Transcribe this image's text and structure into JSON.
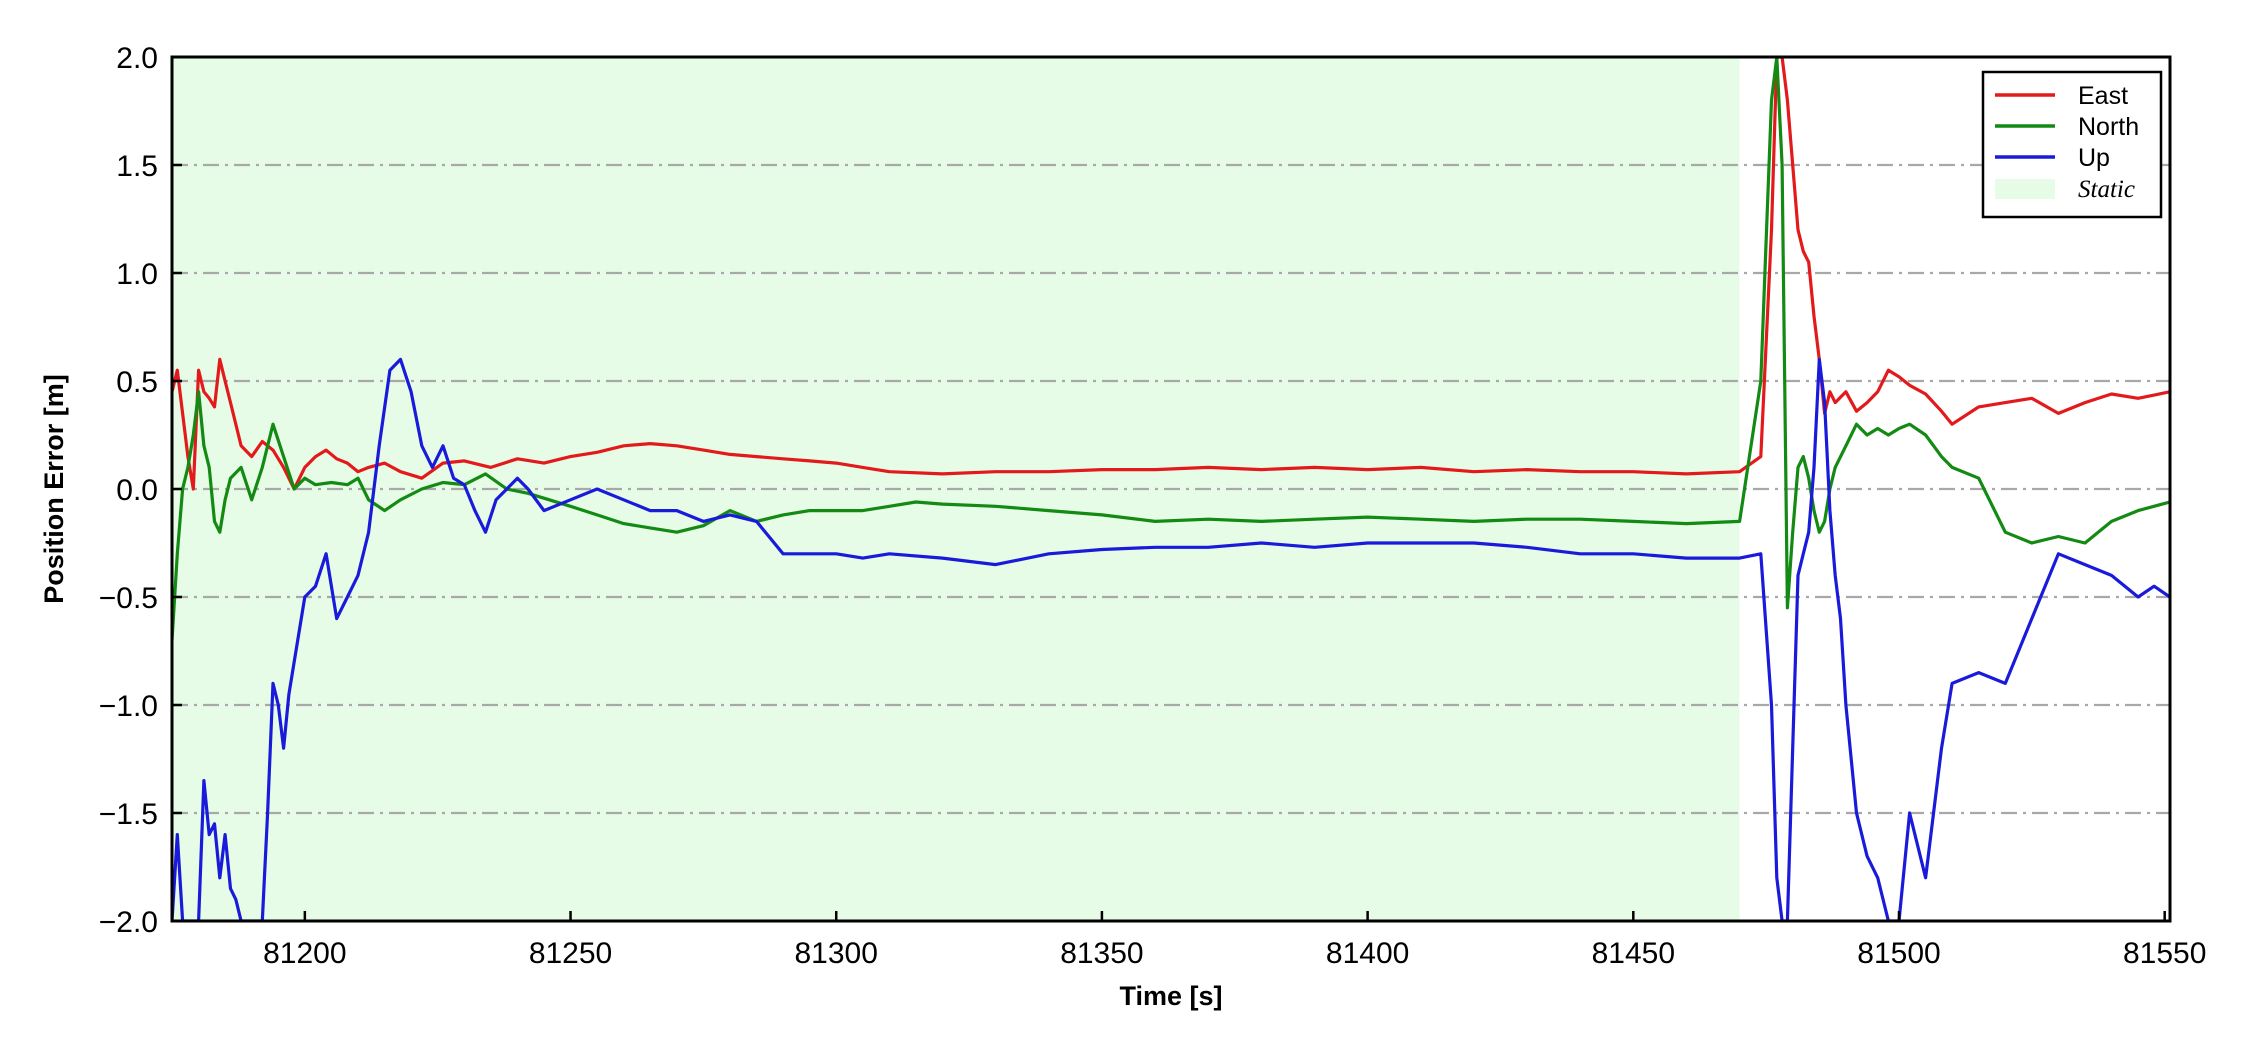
{
  "chart_data": {
    "type": "line",
    "xlabel": "Time [s]",
    "ylabel": "Position Error [m]",
    "xlim": [
      81175,
      81551
    ],
    "ylim": [
      -2.0,
      2.0
    ],
    "xticks": [
      81200,
      81250,
      81300,
      81350,
      81400,
      81450,
      81500,
      81550
    ],
    "yticks": [
      -2.0,
      -1.5,
      -1.0,
      -0.5,
      0.0,
      0.5,
      1.0,
      1.5,
      2.0
    ],
    "ytick_labels": [
      "−2.0",
      "−1.5",
      "−1.0",
      "−0.5",
      "0.0",
      "0.5",
      "1.0",
      "1.5",
      "2.0"
    ],
    "grid": {
      "axis": "y",
      "style": "dash-dot",
      "color": "#a8a8a8"
    },
    "legend_position": "top-right",
    "shaded_region": {
      "label": "Static",
      "x_start": 81175,
      "x_end": 81470,
      "color": "#e6fce6"
    },
    "series": [
      {
        "name": "East",
        "color": "#e31a1c",
        "x": [
          81175,
          81176,
          81177,
          81178,
          81179,
          81180,
          81181,
          81182,
          81183,
          81184,
          81185,
          81186,
          81188,
          81190,
          81192,
          81194,
          81196,
          81198,
          81200,
          81202,
          81204,
          81206,
          81208,
          81210,
          81212,
          81215,
          81218,
          81222,
          81226,
          81230,
          81235,
          81240,
          81245,
          81250,
          81255,
          81260,
          81265,
          81270,
          81275,
          81280,
          81285,
          81290,
          81295,
          81300,
          81305,
          81310,
          81320,
          81330,
          81340,
          81350,
          81360,
          81370,
          81380,
          81390,
          81400,
          81410,
          81420,
          81430,
          81440,
          81450,
          81460,
          81470,
          81474,
          81476,
          81477,
          81478,
          81479,
          81480,
          81481,
          81482,
          81483,
          81484,
          81485,
          81486,
          81487,
          81488,
          81490,
          81492,
          81494,
          81496,
          81498,
          81500,
          81502,
          81505,
          81508,
          81510,
          81515,
          81520,
          81525,
          81530,
          81535,
          81540,
          81545,
          81551
        ],
        "y": [
          0.45,
          0.55,
          0.35,
          0.15,
          0.0,
          0.55,
          0.45,
          0.42,
          0.38,
          0.6,
          0.5,
          0.4,
          0.2,
          0.15,
          0.22,
          0.18,
          0.1,
          0.0,
          0.1,
          0.15,
          0.18,
          0.14,
          0.12,
          0.08,
          0.1,
          0.12,
          0.08,
          0.05,
          0.12,
          0.13,
          0.1,
          0.14,
          0.12,
          0.15,
          0.17,
          0.2,
          0.21,
          0.2,
          0.18,
          0.16,
          0.15,
          0.14,
          0.13,
          0.12,
          0.1,
          0.08,
          0.07,
          0.08,
          0.08,
          0.09,
          0.09,
          0.1,
          0.09,
          0.1,
          0.09,
          0.1,
          0.08,
          0.09,
          0.08,
          0.08,
          0.07,
          0.08,
          0.15,
          1.2,
          2.0,
          2.0,
          1.8,
          1.5,
          1.2,
          1.1,
          1.05,
          0.8,
          0.6,
          0.35,
          0.45,
          0.4,
          0.45,
          0.36,
          0.4,
          0.45,
          0.55,
          0.52,
          0.48,
          0.44,
          0.36,
          0.3,
          0.38,
          0.4,
          0.42,
          0.35,
          0.4,
          0.44,
          0.42,
          0.45
        ]
      },
      {
        "name": "North",
        "color": "#138a13",
        "x": [
          81175,
          81176,
          81177,
          81178,
          81179,
          81180,
          81181,
          81182,
          81183,
          81184,
          81185,
          81186,
          81188,
          81190,
          81192,
          81194,
          81196,
          81198,
          81200,
          81202,
          81205,
          81208,
          81210,
          81212,
          81215,
          81218,
          81222,
          81226,
          81230,
          81234,
          81238,
          81242,
          81246,
          81250,
          81255,
          81260,
          81265,
          81270,
          81275,
          81280,
          81285,
          81290,
          81295,
          81300,
          81305,
          81310,
          81315,
          81320,
          81330,
          81340,
          81350,
          81360,
          81370,
          81380,
          81390,
          81400,
          81410,
          81420,
          81430,
          81440,
          81450,
          81460,
          81470,
          81474,
          81476,
          81477,
          81478,
          81479,
          81480,
          81481,
          81482,
          81483,
          81484,
          81485,
          81486,
          81487,
          81488,
          81490,
          81492,
          81494,
          81496,
          81498,
          81500,
          81502,
          81505,
          81508,
          81510,
          81515,
          81520,
          81525,
          81530,
          81535,
          81540,
          81545,
          81551
        ],
        "y": [
          -0.7,
          -0.3,
          0.0,
          0.1,
          0.25,
          0.45,
          0.2,
          0.1,
          -0.15,
          -0.2,
          -0.05,
          0.05,
          0.1,
          -0.05,
          0.1,
          0.3,
          0.15,
          0.0,
          0.05,
          0.02,
          0.03,
          0.02,
          0.05,
          -0.05,
          -0.1,
          -0.05,
          0.0,
          0.03,
          0.02,
          0.07,
          0.0,
          -0.02,
          -0.05,
          -0.08,
          -0.12,
          -0.16,
          -0.18,
          -0.2,
          -0.17,
          -0.1,
          -0.15,
          -0.12,
          -0.1,
          -0.1,
          -0.1,
          -0.08,
          -0.06,
          -0.07,
          -0.08,
          -0.1,
          -0.12,
          -0.15,
          -0.14,
          -0.15,
          -0.14,
          -0.13,
          -0.14,
          -0.15,
          -0.14,
          -0.14,
          -0.15,
          -0.16,
          -0.15,
          0.5,
          1.8,
          2.0,
          1.5,
          -0.55,
          -0.2,
          0.1,
          0.15,
          0.05,
          -0.1,
          -0.2,
          -0.15,
          0.0,
          0.1,
          0.2,
          0.3,
          0.25,
          0.28,
          0.25,
          0.28,
          0.3,
          0.25,
          0.15,
          0.1,
          0.05,
          -0.2,
          -0.25,
          -0.22,
          -0.25,
          -0.15,
          -0.1,
          -0.06
        ]
      },
      {
        "name": "Up",
        "color": "#1a1adb",
        "x": [
          81175,
          81176,
          81177,
          81178,
          81179,
          81180,
          81181,
          81182,
          81183,
          81184,
          81185,
          81186,
          81187,
          81188,
          81189,
          81190,
          81191,
          81192,
          81193,
          81194,
          81195,
          81196,
          81197,
          81198,
          81200,
          81202,
          81204,
          81206,
          81208,
          81210,
          81212,
          81214,
          81216,
          81218,
          81220,
          81222,
          81224,
          81226,
          81228,
          81230,
          81232,
          81234,
          81236,
          81238,
          81240,
          81242,
          81245,
          81250,
          81255,
          81260,
          81265,
          81270,
          81275,
          81280,
          81285,
          81290,
          81295,
          81300,
          81305,
          81310,
          81320,
          81330,
          81340,
          81350,
          81360,
          81370,
          81380,
          81390,
          81400,
          81410,
          81420,
          81430,
          81440,
          81450,
          81460,
          81470,
          81474,
          81476,
          81477,
          81478,
          81479,
          81480,
          81481,
          81482,
          81483,
          81484,
          81485,
          81486,
          81487,
          81488,
          81489,
          81490,
          81492,
          81494,
          81496,
          81498,
          81500,
          81502,
          81505,
          81508,
          81510,
          81515,
          81520,
          81525,
          81530,
          81535,
          81540,
          81545,
          81548,
          81551
        ],
        "y": [
          -2.0,
          -1.6,
          -2.0,
          -2.0,
          -2.0,
          -2.0,
          -1.35,
          -1.6,
          -1.55,
          -1.8,
          -1.6,
          -1.85,
          -1.9,
          -2.0,
          -2.0,
          -2.0,
          -2.0,
          -2.0,
          -1.5,
          -0.9,
          -1.0,
          -1.2,
          -0.95,
          -0.8,
          -0.5,
          -0.45,
          -0.3,
          -0.6,
          -0.5,
          -0.4,
          -0.2,
          0.2,
          0.55,
          0.6,
          0.45,
          0.2,
          0.1,
          0.2,
          0.05,
          0.02,
          -0.1,
          -0.2,
          -0.05,
          0.0,
          0.05,
          0.0,
          -0.1,
          -0.05,
          0.0,
          -0.05,
          -0.1,
          -0.1,
          -0.15,
          -0.12,
          -0.15,
          -0.3,
          -0.3,
          -0.3,
          -0.32,
          -0.3,
          -0.32,
          -0.35,
          -0.3,
          -0.28,
          -0.27,
          -0.27,
          -0.25,
          -0.27,
          -0.25,
          -0.25,
          -0.25,
          -0.27,
          -0.3,
          -0.3,
          -0.32,
          -0.32,
          -0.3,
          -1.0,
          -1.8,
          -2.0,
          -2.0,
          -1.2,
          -0.4,
          -0.3,
          -0.2,
          0.1,
          0.6,
          0.4,
          -0.1,
          -0.4,
          -0.6,
          -1.0,
          -1.5,
          -1.7,
          -1.8,
          -2.0,
          -2.0,
          -1.5,
          -1.8,
          -1.2,
          -0.9,
          -0.85,
          -0.9,
          -0.6,
          -0.3,
          -0.35,
          -0.4,
          -0.5,
          -0.45,
          -0.5
        ]
      }
    ]
  }
}
